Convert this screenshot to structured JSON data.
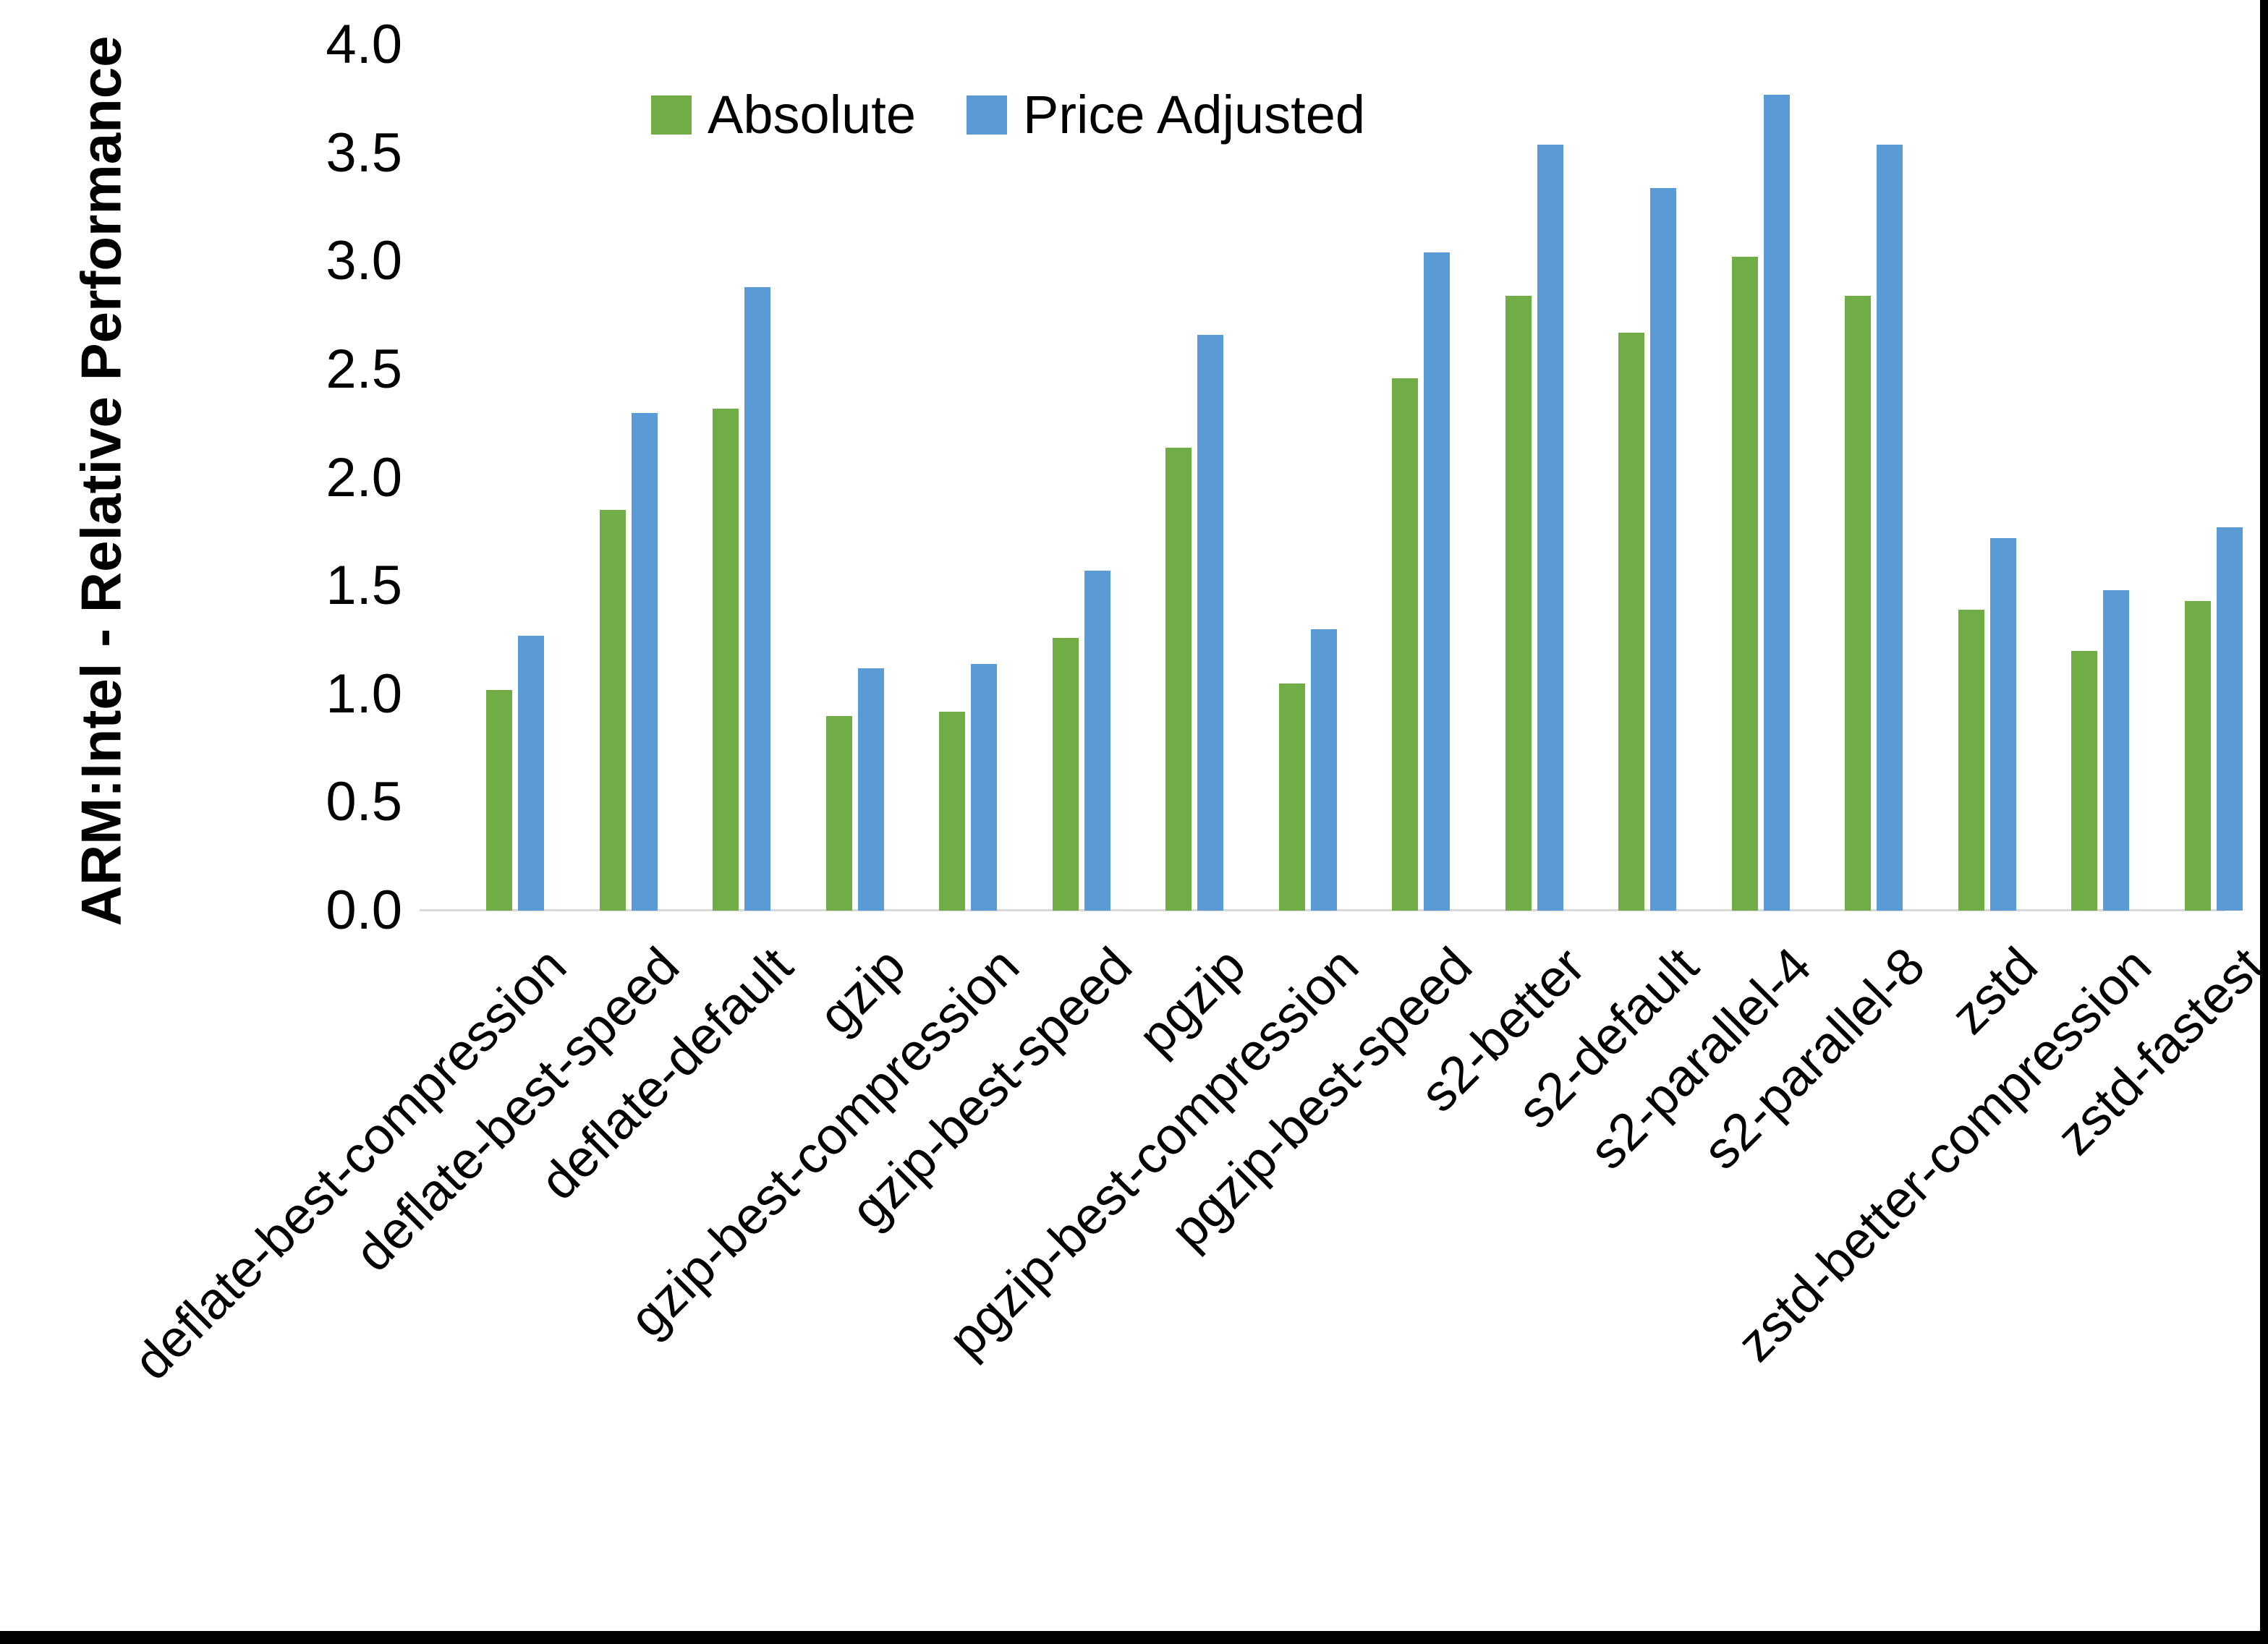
{
  "chart_data": {
    "type": "bar",
    "title": "",
    "xlabel": "",
    "ylabel": "ARM:Intel - Relative Performance",
    "ylim": [
      0.0,
      4.0
    ],
    "ytick_step": 0.5,
    "ytick_labels": [
      "0.0",
      "0.5",
      "1.0",
      "1.5",
      "2.0",
      "2.5",
      "3.0",
      "3.5",
      "4.0"
    ],
    "grid": false,
    "legend_position": "top-center",
    "categories": [
      "deflate-best-compression",
      "deflate-best-speed",
      "deflate-default",
      "gzip",
      "gzip-best-compression",
      "gzip-best-speed",
      "pgzip",
      "pgzip-best-compression",
      "pgzip-best-speed",
      "s2-better",
      "s2-default",
      "s2-parallel-4",
      "s2-parallel-8",
      "zstd",
      "zstd-better-compression",
      "zstd-fastest"
    ],
    "series": [
      {
        "name": "Absolute",
        "color": "#70AD47",
        "values": [
          1.02,
          1.85,
          2.32,
          0.9,
          0.92,
          1.26,
          2.14,
          1.05,
          2.46,
          2.84,
          2.67,
          3.02,
          2.84,
          1.39,
          1.2,
          1.43
        ]
      },
      {
        "name": "Price Adjusted",
        "color": "#5B9BD5",
        "values": [
          1.27,
          2.3,
          2.88,
          1.12,
          1.14,
          1.57,
          2.66,
          1.3,
          3.04,
          3.54,
          3.34,
          3.77,
          3.54,
          1.72,
          1.48,
          1.77
        ]
      }
    ],
    "axis_line_color": "#D9D9D9"
  }
}
